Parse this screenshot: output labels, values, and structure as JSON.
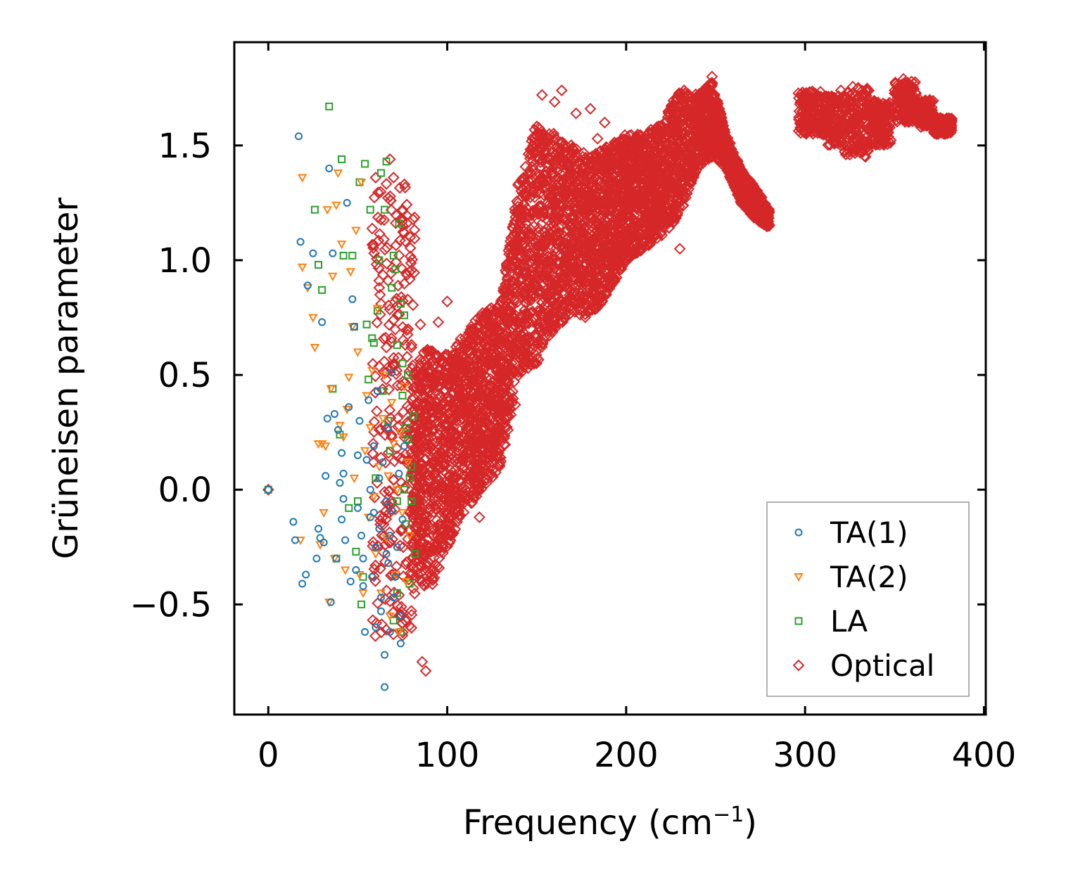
{
  "chart_data": {
    "type": "scatter",
    "title": "",
    "xlabel": "Frequency (cm",
    "xlabel_sup": "−1",
    "xlabel_tail": ")",
    "ylabel": "Grüneisen parameter",
    "xlim": [
      -19,
      401
    ],
    "ylim": [
      -0.98,
      1.95
    ],
    "xticks": [
      0,
      100,
      200,
      300,
      400
    ],
    "xtick_labels": [
      "0",
      "100",
      "200",
      "300",
      "400"
    ],
    "yticks": [
      -0.5,
      0.0,
      0.5,
      1.0,
      1.5
    ],
    "ytick_labels": [
      "−0.5",
      "0.0",
      "0.5",
      "1.0",
      "1.5"
    ],
    "grid": false,
    "legend_position": "lower-right",
    "series": [
      {
        "name": "TA(1)",
        "marker": "circle",
        "color": "#1f77b4",
        "points": [
          [
            0,
            0.0
          ],
          [
            14,
            -0.14
          ],
          [
            15,
            -0.22
          ],
          [
            17,
            1.54
          ],
          [
            18,
            1.08
          ],
          [
            19,
            -0.41
          ],
          [
            21,
            -0.37
          ],
          [
            22,
            0.89
          ],
          [
            25,
            1.03
          ],
          [
            27,
            -0.3
          ],
          [
            28,
            -0.17
          ],
          [
            29,
            -0.21
          ],
          [
            30,
            0.73
          ],
          [
            31,
            -0.23
          ],
          [
            32,
            0.06
          ],
          [
            33,
            0.31
          ],
          [
            34,
            1.4
          ],
          [
            36,
            1.03
          ],
          [
            35,
            -0.49
          ],
          [
            37,
            0.33
          ],
          [
            38,
            -0.3
          ],
          [
            39,
            0.26
          ],
          [
            40,
            0.03
          ],
          [
            41,
            -0.13
          ],
          [
            41,
            0.16
          ],
          [
            42,
            0.07
          ],
          [
            42,
            -0.04
          ],
          [
            43,
            -0.22
          ],
          [
            44,
            1.25
          ],
          [
            45,
            0.36
          ],
          [
            46,
            -0.4
          ],
          [
            47,
            0.83
          ],
          [
            48,
            0.71
          ],
          [
            49,
            -0.35
          ],
          [
            50,
            0.15
          ],
          [
            50,
            -0.08
          ],
          [
            51,
            0.3
          ],
          [
            52,
            -0.2
          ],
          [
            53,
            -0.3
          ],
          [
            53,
            -0.42
          ],
          [
            54,
            -0.62
          ],
          [
            55,
            0.13
          ],
          [
            56,
            0.39
          ],
          [
            57,
            0.0
          ],
          [
            57,
            -0.12
          ],
          [
            58,
            -0.38
          ],
          [
            59,
            -0.1
          ],
          [
            59,
            0.19
          ],
          [
            60,
            -0.6
          ],
          [
            60,
            -0.25
          ],
          [
            61,
            0.43
          ],
          [
            62,
            -0.17
          ],
          [
            62,
            0.05
          ],
          [
            63,
            -0.47
          ],
          [
            63,
            -0.53
          ],
          [
            64,
            0.12
          ],
          [
            65,
            -0.72
          ],
          [
            65,
            -0.86
          ],
          [
            66,
            -0.05
          ],
          [
            66,
            -0.28
          ],
          [
            67,
            0.27
          ],
          [
            67,
            -0.32
          ],
          [
            68,
            -0.62
          ],
          [
            68,
            -0.2
          ],
          [
            69,
            0.51
          ],
          [
            69,
            -0.09
          ],
          [
            70,
            -0.47
          ],
          [
            71,
            -0.38
          ],
          [
            72,
            -0.25
          ],
          [
            73,
            0.07
          ],
          [
            74,
            -0.55
          ],
          [
            74,
            -0.67
          ],
          [
            75,
            -0.13
          ],
          [
            76,
            0.19
          ]
        ]
      },
      {
        "name": "TA(2)",
        "marker": "triangle-down",
        "color": "#ff7f0e",
        "points": [
          [
            19,
            1.36
          ],
          [
            18,
            -0.22
          ],
          [
            19,
            0.97
          ],
          [
            22,
            0.88
          ],
          [
            25,
            0.75
          ],
          [
            26,
            0.62
          ],
          [
            28,
            0.2
          ],
          [
            29,
            -0.24
          ],
          [
            30,
            0.2
          ],
          [
            31,
            -0.1
          ],
          [
            32,
            0.19
          ],
          [
            33,
            1.22
          ],
          [
            34,
            -0.49
          ],
          [
            35,
            0.44
          ],
          [
            36,
            0.93
          ],
          [
            37,
            -0.3
          ],
          [
            38,
            1.24
          ],
          [
            39,
            1.38
          ],
          [
            40,
            0.28
          ],
          [
            41,
            1.07
          ],
          [
            42,
            0.23
          ],
          [
            43,
            -0.35
          ],
          [
            44,
            0.35
          ],
          [
            45,
            0.49
          ],
          [
            46,
            0.95
          ],
          [
            47,
            0.71
          ],
          [
            48,
            0.05
          ],
          [
            49,
            1.13
          ],
          [
            50,
            0.6
          ],
          [
            51,
            -0.37
          ],
          [
            52,
            1.34
          ],
          [
            53,
            -0.45
          ],
          [
            54,
            0.17
          ],
          [
            55,
            0.41
          ],
          [
            56,
            -0.12
          ],
          [
            57,
            0.27
          ],
          [
            58,
            0.52
          ],
          [
            59,
            -0.03
          ],
          [
            60,
            -0.28
          ],
          [
            61,
            0.79
          ],
          [
            62,
            0.1
          ],
          [
            63,
            -0.45
          ],
          [
            64,
            0.31
          ],
          [
            65,
            0.5
          ],
          [
            66,
            -0.21
          ],
          [
            67,
            0.06
          ],
          [
            68,
            -0.55
          ],
          [
            69,
            0.38
          ],
          [
            70,
            0.2
          ],
          [
            71,
            -0.37
          ],
          [
            72,
            0.0
          ],
          [
            73,
            -0.62
          ],
          [
            74,
            0.25
          ],
          [
            75,
            -0.1
          ],
          [
            76,
            0.45
          ],
          [
            77,
            -0.4
          ],
          [
            78,
            0.12
          ],
          [
            79,
            -0.2
          ]
        ]
      },
      {
        "name": "LA",
        "marker": "square",
        "color": "#2ca02c",
        "points": [
          [
            0,
            0.0
          ],
          [
            26,
            1.22
          ],
          [
            28,
            0.98
          ],
          [
            30,
            0.87
          ],
          [
            34,
            1.67
          ],
          [
            36,
            0.44
          ],
          [
            38,
            -0.3
          ],
          [
            40,
            0.24
          ],
          [
            41,
            1.44
          ],
          [
            42,
            1.02
          ],
          [
            45,
            -0.08
          ],
          [
            47,
            1.02
          ],
          [
            48,
            0.71
          ],
          [
            49,
            -0.27
          ],
          [
            50,
            -0.05
          ],
          [
            51,
            1.34
          ],
          [
            52,
            -0.5
          ],
          [
            53,
            -0.38
          ],
          [
            54,
            1.42
          ],
          [
            55,
            0.72
          ],
          [
            56,
            0.48
          ],
          [
            57,
            1.22
          ],
          [
            58,
            0.66
          ],
          [
            59,
            0.64
          ],
          [
            60,
            0.05
          ],
          [
            61,
            0.78
          ],
          [
            62,
            1.0
          ],
          [
            63,
            1.38
          ],
          [
            64,
            0.43
          ],
          [
            65,
            1.22
          ],
          [
            66,
            1.43
          ],
          [
            67,
            0.3
          ],
          [
            68,
            0.17
          ],
          [
            69,
            0.88
          ],
          [
            70,
            1.02
          ],
          [
            71,
            0.96
          ],
          [
            72,
            -0.05
          ],
          [
            73,
            1.16
          ],
          [
            74,
            0.81
          ],
          [
            75,
            0.55
          ],
          [
            76,
            0.0
          ],
          [
            77,
            -0.15
          ],
          [
            78,
            0.5
          ],
          [
            79,
            -0.41
          ],
          [
            80,
            0.1
          ],
          [
            81,
            0.32
          ],
          [
            82,
            -0.28
          ],
          [
            72,
            0.63
          ],
          [
            74,
            -0.62
          ],
          [
            76,
            0.76
          ],
          [
            78,
            0.22
          ],
          [
            80,
            -0.05
          ],
          [
            70,
            -0.57
          ],
          [
            72,
            -0.45
          ],
          [
            75,
            0.41
          ],
          [
            77,
            0.27
          ],
          [
            79,
            0.05
          ]
        ]
      },
      {
        "name": "Optical",
        "marker": "diamond",
        "color": "#d62728",
        "generator": "dense-band",
        "points": [
          [
            0,
            0.0
          ],
          [
            60,
            1.36
          ],
          [
            62,
            0.88
          ],
          [
            66,
            0.62
          ],
          [
            68,
            1.44
          ],
          [
            70,
            1.36
          ],
          [
            72,
            0.8
          ],
          [
            75,
            1.22
          ],
          [
            76,
            1.12
          ],
          [
            78,
            0.45
          ],
          [
            80,
            0.62
          ],
          [
            82,
            0.37
          ],
          [
            85,
            0.72
          ],
          [
            86,
            -0.75
          ],
          [
            88,
            -0.79
          ],
          [
            88,
            0.22
          ],
          [
            90,
            0.39
          ],
          [
            92,
            0.45
          ],
          [
            95,
            0.73
          ],
          [
            100,
            0.82
          ],
          [
            105,
            0.3
          ],
          [
            108,
            0.56
          ],
          [
            110,
            0.0
          ],
          [
            115,
            0.42
          ],
          [
            118,
            -0.12
          ],
          [
            120,
            0.26
          ],
          [
            125,
            0.67
          ],
          [
            130,
            0.55
          ],
          [
            135,
            0.78
          ],
          [
            138,
            0.37
          ],
          [
            140,
            0.96
          ],
          [
            145,
            0.66
          ],
          [
            150,
            1.32
          ],
          [
            153,
            1.72
          ],
          [
            157,
            1.55
          ],
          [
            160,
            1.69
          ],
          [
            164,
            1.74
          ],
          [
            166,
            1.47
          ],
          [
            172,
            1.64
          ],
          [
            175,
            0.81
          ],
          [
            180,
            1.66
          ],
          [
            184,
            1.53
          ],
          [
            188,
            1.6
          ],
          [
            195,
            1.15
          ],
          [
            200,
            1.4
          ],
          [
            205,
            1.48
          ],
          [
            210,
            1.47
          ],
          [
            215,
            1.15
          ],
          [
            220,
            1.3
          ],
          [
            225,
            1.61
          ],
          [
            230,
            1.05
          ],
          [
            235,
            1.54
          ],
          [
            240,
            1.59
          ],
          [
            245,
            1.73
          ],
          [
            248,
            1.8
          ],
          [
            252,
            1.66
          ],
          [
            256,
            1.48
          ],
          [
            260,
            1.35
          ],
          [
            265,
            1.28
          ],
          [
            270,
            1.25
          ],
          [
            275,
            1.22
          ],
          [
            280,
            1.15
          ],
          [
            300,
            1.72
          ],
          [
            305,
            1.67
          ],
          [
            310,
            1.55
          ],
          [
            315,
            1.71
          ],
          [
            320,
            1.74
          ],
          [
            325,
            1.46
          ],
          [
            330,
            1.63
          ],
          [
            335,
            1.68
          ],
          [
            340,
            1.52
          ],
          [
            345,
            1.64
          ],
          [
            350,
            1.74
          ],
          [
            355,
            1.79
          ],
          [
            360,
            1.72
          ],
          [
            365,
            1.66
          ],
          [
            370,
            1.63
          ],
          [
            375,
            1.59
          ],
          [
            380,
            1.56
          ]
        ]
      }
    ]
  }
}
